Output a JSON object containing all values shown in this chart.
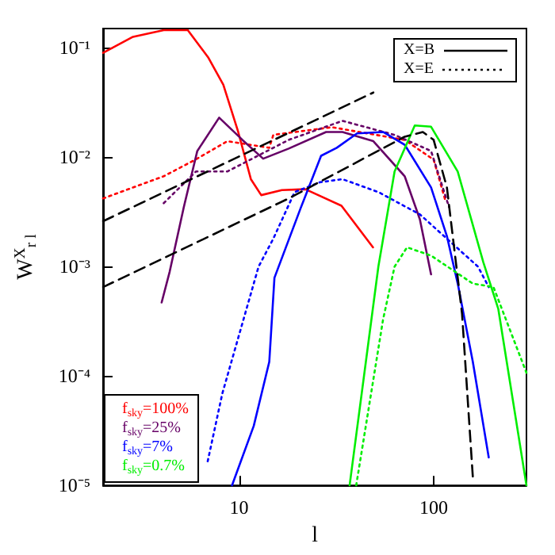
{
  "chart_data": {
    "type": "line",
    "xlabel": "l",
    "ylabel": "W$^{X}$$_{r l}$",
    "log": "xy",
    "xlim": [
      2,
      300
    ],
    "ylim": [
      1e-05,
      0.15
    ],
    "xticks": [
      10,
      100
    ],
    "yticks": [
      {
        "value": 1e-05,
        "label": "10⁻⁵"
      },
      {
        "value": 0.0001,
        "label": "10⁻⁴"
      },
      {
        "value": 0.001,
        "label": "10⁻³"
      },
      {
        "value": 0.01,
        "label": "10⁻²"
      },
      {
        "value": 0.1,
        "label": "10⁻¹"
      }
    ],
    "grid": false,
    "legend": "bottom left",
    "marker": "none",
    "annotations": [
      "X=B",
      "X=E"
    ],
    "series": [
      {
        "name": "f$_{sky}$=100%",
        "color": "#ff0000",
        "line_style": "solid",
        "x": [
          2,
          2.85,
          4.1,
          5.45,
          6.93,
          8.3,
          9.9,
          11.5,
          13,
          16.6,
          21.9,
          33.6,
          48.8
        ],
        "values": [
          0.09,
          0.126,
          0.145,
          0.145,
          0.082,
          0.046,
          0.017,
          0.0063,
          0.0045,
          0.005,
          0.0051,
          0.0036,
          0.0015
        ]
      },
      {
        "color": "#ff0000",
        "line_style": "dotted",
        "x": [
          2,
          4.1,
          5.9,
          8.7,
          14.3,
          15,
          30,
          71,
          100,
          115
        ],
        "values": [
          0.0042,
          0.0067,
          0.0094,
          0.014,
          0.0122,
          0.016,
          0.0188,
          0.0144,
          0.0095,
          0.004
        ]
      },
      {
        "name": "f$_{sky}$=25%",
        "color": "#660066",
        "line_style": "solid",
        "x": [
          4,
          4.4,
          5.2,
          6.1,
          7.9,
          10.4,
          13.3,
          18,
          28,
          34,
          49,
          71,
          85,
          97
        ],
        "values": [
          0.00047,
          0.0009,
          0.0035,
          0.0114,
          0.023,
          0.0144,
          0.0097,
          0.012,
          0.017,
          0.017,
          0.014,
          0.0067,
          0.0027,
          0.00085
        ]
      },
      {
        "color": "#660066",
        "line_style": "dotted",
        "x": [
          4.1,
          6,
          8.7,
          18,
          34,
          63,
          97,
          120
        ],
        "values": [
          0.0038,
          0.0074,
          0.0074,
          0.0144,
          0.0215,
          0.016,
          0.0114,
          0.0035
        ]
      },
      {
        "name": "f$_{sky}$=7%",
        "color": "#0000ff",
        "line_style": "solid",
        "x": [
          9.2,
          11.9,
          14.3,
          15.2,
          20.7,
          26.4,
          31.8,
          40.4,
          55,
          71,
          97,
          117,
          133,
          159,
          192
        ],
        "values": [
          1e-05,
          3.5e-05,
          0.000135,
          0.00079,
          0.0034,
          0.0103,
          0.0122,
          0.0165,
          0.017,
          0.013,
          0.0053,
          0.0019,
          0.0007,
          0.000135,
          1.8e-05
        ]
      },
      {
        "color": "#0000ff",
        "line_style": "dotted",
        "x": [
          6.9,
          8.2,
          12.6,
          15,
          19.3,
          26,
          34,
          52,
          85,
          169,
          192
        ],
        "values": [
          1.66e-05,
          6.9e-05,
          0.001,
          0.0018,
          0.0048,
          0.0059,
          0.0063,
          0.0048,
          0.003,
          0.001,
          0.00065
        ]
      },
      {
        "name": "f$_{sky}$=0.7%",
        "color": "#00ee00",
        "line_style": "solid",
        "x": [
          37,
          52,
          63,
          80,
          97,
          133,
          180,
          215,
          300
        ],
        "values": [
          1e-05,
          0.001,
          0.0074,
          0.0195,
          0.019,
          0.0074,
          0.0011,
          0.00041,
          1e-05
        ]
      },
      {
        "color": "#00ee00",
        "line_style": "dotted",
        "x": [
          40,
          55,
          63,
          73,
          97,
          159,
          203,
          300
        ],
        "values": [
          1e-05,
          0.00033,
          0.001,
          0.0015,
          0.00126,
          0.0007,
          0.00065,
          0.000107
        ]
      },
      {
        "color": "#000000",
        "line_style": "dashed",
        "x": [
          2,
          49
        ],
        "values": [
          0.0026,
          0.039
        ]
      },
      {
        "color": "#000000",
        "line_style": "dashed",
        "x": [
          2,
          18,
          71,
          88,
          100,
          117,
          140,
          159
        ],
        "values": [
          0.00065,
          0.0042,
          0.0154,
          0.017,
          0.0144,
          0.0053,
          0.00037,
          1.2e-05
        ]
      }
    ]
  }
}
